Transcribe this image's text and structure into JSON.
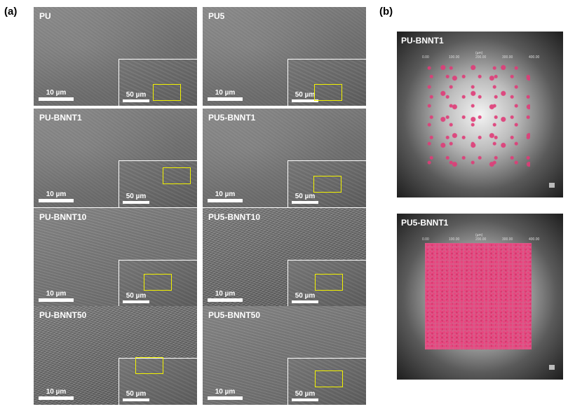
{
  "panel_a": {
    "label": "(a)",
    "panels": [
      {
        "name": "PU",
        "scale": "10 µm",
        "inset_scale": "50 µm"
      },
      {
        "name": "PU5",
        "scale": "10 µm",
        "inset_scale": "50 µm"
      },
      {
        "name": "PU-BNNT1",
        "scale": "10 µm",
        "inset_scale": "50 µm"
      },
      {
        "name": "PU5-BNNT1",
        "scale": "10 µm",
        "inset_scale": "50 µm"
      },
      {
        "name": "PU-BNNT10",
        "scale": "10 µm",
        "inset_scale": "50 µm"
      },
      {
        "name": "PU5-BNNT10",
        "scale": "10 µm",
        "inset_scale": "50 µm"
      },
      {
        "name": "PU-BNNT50",
        "scale": "10 µm",
        "inset_scale": "50 µm"
      },
      {
        "name": "PU5-BNNT50",
        "scale": "10 µm",
        "inset_scale": "50 µm"
      }
    ],
    "highlight_color": "#f2f200"
  },
  "panel_b": {
    "label": "(b)",
    "images": [
      {
        "name": "PU-BNNT1",
        "density": "sparse"
      },
      {
        "name": "PU5-BNNT1",
        "density": "dense"
      }
    ],
    "axis": {
      "unit": "(µm)",
      "ticks": [
        "0.00",
        "100.00",
        "200.00",
        "300.00",
        "400.00"
      ]
    },
    "particle_color": "#e03c78"
  }
}
